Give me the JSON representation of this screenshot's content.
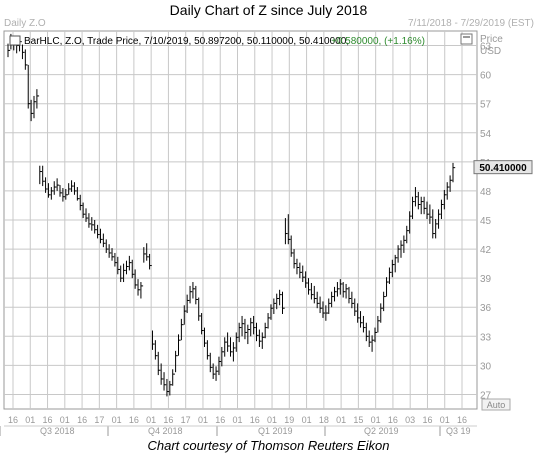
{
  "title": "Daily Chart of Z since July 2018",
  "caption": "Chart courtesy of Thomson Reuters Eikon",
  "header": {
    "symbol_corner": "Daily Z.O",
    "date_range": "7/11/2018 - 7/29/2019 (EST)",
    "ohlc_prefix": "BarHLC, Z.O, Trade Price, 7/10/2019, 50.897200, 50.110000, 50.410000,",
    "change": "+0.580000, (+1.16%)"
  },
  "colors": {
    "bars": "#000000",
    "grid": "#c8c8c8",
    "change_positive": "#2e8b2e",
    "price_badge_bg": "#e6e6e6"
  },
  "icons": {
    "window_control": "maximize-icon"
  },
  "chart_data": {
    "type": "ohlc-bar",
    "y_axis": {
      "label": "Price",
      "unit": "USD",
      "ticks": [
        27,
        30,
        33,
        36,
        39,
        42,
        45,
        48,
        51,
        54,
        57,
        60,
        63
      ],
      "range": [
        25.5,
        64.5
      ],
      "side": "right",
      "scale_mode": "Auto"
    },
    "last_price_label": "50.410000",
    "x_axis": {
      "day_ticks": [
        "16",
        "01",
        "16",
        "01",
        "16",
        "17",
        "01",
        "16",
        "01",
        "16",
        "17",
        "01",
        "16",
        "01",
        "16",
        "01",
        "19",
        "01",
        "18",
        "01",
        "15",
        "01",
        "16",
        "03",
        "16",
        "01",
        "16"
      ],
      "quarters": [
        "Q3 2018",
        "Q4 2018",
        "Q1 2019",
        "Q2 2019",
        "Q3 19"
      ]
    },
    "grid": true,
    "series": [
      {
        "name": "Z.O",
        "values": [
          [
            63.2,
            61.8,
            62.5
          ],
          [
            64.2,
            62.6,
            63.8
          ],
          [
            63.9,
            62.5,
            63.2
          ],
          [
            63.7,
            62.2,
            63.0
          ],
          [
            63.6,
            62.4,
            63.4
          ],
          [
            63.1,
            61.6,
            62.3
          ],
          [
            62.6,
            60.5,
            61.0
          ],
          [
            61.0,
            56.5,
            57.0
          ],
          [
            57.4,
            55.2,
            56.0
          ],
          [
            57.8,
            55.5,
            57.2
          ],
          [
            58.5,
            56.5,
            57.8
          ],
          [
            50.6,
            48.7,
            50.0
          ],
          [
            50.6,
            48.5,
            49.0
          ],
          [
            49.4,
            47.8,
            48.2
          ],
          [
            48.8,
            47.3,
            47.6
          ],
          [
            48.4,
            47.1,
            48.0
          ],
          [
            49.0,
            47.6,
            48.4
          ],
          [
            49.3,
            48.0,
            48.6
          ],
          [
            48.6,
            47.4,
            47.8
          ],
          [
            48.3,
            46.9,
            47.4
          ],
          [
            48.2,
            47.1,
            47.6
          ],
          [
            48.8,
            47.6,
            48.2
          ],
          [
            49.1,
            47.9,
            48.5
          ],
          [
            48.9,
            47.6,
            48.0
          ],
          [
            48.4,
            47.0,
            47.2
          ],
          [
            47.6,
            46.0,
            46.5
          ],
          [
            46.8,
            45.2,
            45.6
          ],
          [
            46.2,
            44.8,
            45.2
          ],
          [
            45.7,
            44.2,
            44.6
          ],
          [
            45.3,
            43.9,
            44.5
          ],
          [
            45.0,
            43.6,
            44.0
          ],
          [
            44.5,
            43.1,
            43.5
          ],
          [
            44.1,
            42.6,
            43.0
          ],
          [
            43.6,
            42.2,
            42.6
          ],
          [
            43.0,
            41.6,
            42.0
          ],
          [
            42.5,
            41.1,
            41.6
          ],
          [
            42.1,
            40.8,
            41.2
          ],
          [
            41.6,
            40.2,
            40.6
          ],
          [
            41.2,
            39.4,
            39.9
          ],
          [
            40.3,
            38.6,
            39.0
          ],
          [
            40.5,
            38.6,
            39.8
          ],
          [
            40.8,
            39.4,
            40.2
          ],
          [
            41.3,
            39.8,
            40.6
          ],
          [
            40.9,
            39.0,
            39.4
          ],
          [
            39.9,
            37.9,
            38.3
          ],
          [
            38.9,
            37.2,
            37.8
          ],
          [
            38.6,
            36.9,
            38.2
          ],
          [
            42.2,
            40.6,
            41.5
          ],
          [
            42.6,
            40.8,
            41.2
          ],
          [
            41.5,
            39.9,
            40.3
          ],
          [
            33.6,
            31.6,
            32.2
          ],
          [
            32.6,
            30.6,
            31.0
          ],
          [
            31.4,
            29.0,
            29.5
          ],
          [
            30.2,
            28.0,
            28.6
          ],
          [
            29.3,
            27.4,
            28.0
          ],
          [
            28.6,
            26.8,
            27.3
          ],
          [
            28.4,
            26.9,
            28.0
          ],
          [
            29.6,
            27.9,
            29.1
          ],
          [
            31.5,
            29.3,
            31.0
          ],
          [
            33.2,
            31.0,
            32.6
          ],
          [
            34.8,
            32.6,
            34.2
          ],
          [
            36.2,
            34.2,
            35.6
          ],
          [
            37.3,
            35.4,
            36.7
          ],
          [
            38.2,
            36.4,
            37.6
          ],
          [
            38.6,
            36.9,
            37.9
          ],
          [
            38.2,
            36.3,
            36.8
          ],
          [
            37.0,
            34.6,
            35.1
          ],
          [
            35.4,
            33.2,
            33.6
          ],
          [
            33.9,
            31.9,
            32.3
          ],
          [
            32.6,
            30.6,
            31.0
          ],
          [
            31.3,
            29.3,
            29.8
          ],
          [
            30.2,
            28.6,
            29.1
          ],
          [
            29.9,
            28.4,
            29.4
          ],
          [
            30.9,
            29.0,
            30.4
          ],
          [
            31.9,
            29.9,
            31.4
          ],
          [
            32.9,
            30.9,
            32.4
          ],
          [
            33.4,
            31.4,
            32.0
          ],
          [
            32.9,
            30.9,
            31.4
          ],
          [
            32.4,
            30.4,
            31.8
          ],
          [
            33.4,
            31.4,
            32.9
          ],
          [
            34.4,
            32.4,
            33.9
          ],
          [
            35.1,
            33.0,
            34.3
          ],
          [
            34.8,
            32.7,
            33.4
          ],
          [
            34.2,
            32.2,
            33.7
          ],
          [
            34.9,
            33.0,
            34.4
          ],
          [
            35.1,
            33.2,
            33.9
          ],
          [
            34.4,
            32.5,
            33.1
          ],
          [
            33.7,
            31.9,
            32.5
          ],
          [
            33.4,
            31.7,
            32.9
          ],
          [
            34.4,
            32.8,
            33.9
          ],
          [
            35.4,
            33.8,
            34.9
          ],
          [
            36.3,
            34.7,
            35.9
          ],
          [
            36.9,
            35.3,
            36.4
          ],
          [
            37.4,
            35.8,
            36.9
          ],
          [
            37.8,
            36.2,
            37.3
          ],
          [
            37.6,
            35.3,
            35.9
          ],
          [
            45.2,
            42.5,
            43.6
          ],
          [
            45.6,
            42.5,
            43.0
          ],
          [
            43.4,
            41.2,
            41.6
          ],
          [
            42.0,
            40.0,
            40.5
          ],
          [
            41.0,
            39.4,
            40.1
          ],
          [
            40.6,
            39.0,
            39.6
          ],
          [
            40.3,
            38.6,
            39.1
          ],
          [
            39.7,
            38.0,
            38.5
          ],
          [
            39.0,
            37.3,
            37.8
          ],
          [
            38.5,
            36.8,
            37.3
          ],
          [
            38.2,
            36.4,
            36.9
          ],
          [
            37.6,
            35.9,
            36.4
          ],
          [
            37.1,
            35.4,
            35.9
          ],
          [
            36.6,
            34.9,
            35.4
          ],
          [
            36.2,
            34.6,
            35.4
          ],
          [
            36.9,
            35.3,
            36.4
          ],
          [
            37.6,
            36.0,
            37.1
          ],
          [
            38.1,
            36.6,
            37.6
          ],
          [
            38.6,
            37.1,
            37.9
          ],
          [
            38.9,
            37.3,
            38.4
          ],
          [
            38.6,
            37.0,
            37.6
          ],
          [
            38.4,
            36.9,
            37.9
          ],
          [
            38.1,
            36.4,
            36.9
          ],
          [
            37.6,
            35.9,
            36.4
          ],
          [
            36.9,
            35.1,
            35.6
          ],
          [
            36.4,
            34.4,
            34.9
          ],
          [
            35.6,
            33.9,
            34.4
          ],
          [
            35.1,
            33.4,
            33.9
          ],
          [
            34.4,
            32.5,
            33.0
          ],
          [
            33.6,
            31.9,
            32.4
          ],
          [
            33.1,
            31.4,
            32.6
          ],
          [
            33.9,
            32.4,
            33.4
          ],
          [
            35.1,
            33.4,
            34.6
          ],
          [
            36.4,
            34.4,
            35.9
          ],
          [
            37.6,
            35.6,
            37.1
          ],
          [
            39.1,
            37.1,
            38.6
          ],
          [
            40.1,
            38.4,
            39.6
          ],
          [
            40.9,
            39.1,
            40.4
          ],
          [
            41.4,
            39.6,
            41.1
          ],
          [
            42.4,
            40.6,
            42.0
          ],
          [
            42.9,
            41.1,
            42.4
          ],
          [
            43.4,
            41.6,
            42.9
          ],
          [
            44.4,
            42.6,
            43.9
          ],
          [
            45.9,
            43.6,
            45.4
          ],
          [
            47.4,
            45.1,
            46.9
          ],
          [
            48.4,
            46.4,
            47.4
          ],
          [
            47.9,
            46.1,
            46.6
          ],
          [
            47.4,
            45.6,
            46.9
          ],
          [
            47.4,
            45.6,
            46.2
          ],
          [
            46.9,
            45.1,
            45.6
          ],
          [
            46.6,
            44.6,
            45.3
          ],
          [
            46.1,
            43.1,
            43.6
          ],
          [
            45.1,
            43.1,
            44.6
          ],
          [
            46.1,
            44.1,
            45.6
          ],
          [
            47.1,
            45.1,
            46.6
          ],
          [
            48.1,
            46.1,
            47.6
          ],
          [
            48.9,
            47.1,
            48.4
          ],
          [
            49.6,
            47.9,
            49.1
          ],
          [
            50.9,
            48.9,
            50.4
          ]
        ]
      }
    ]
  }
}
